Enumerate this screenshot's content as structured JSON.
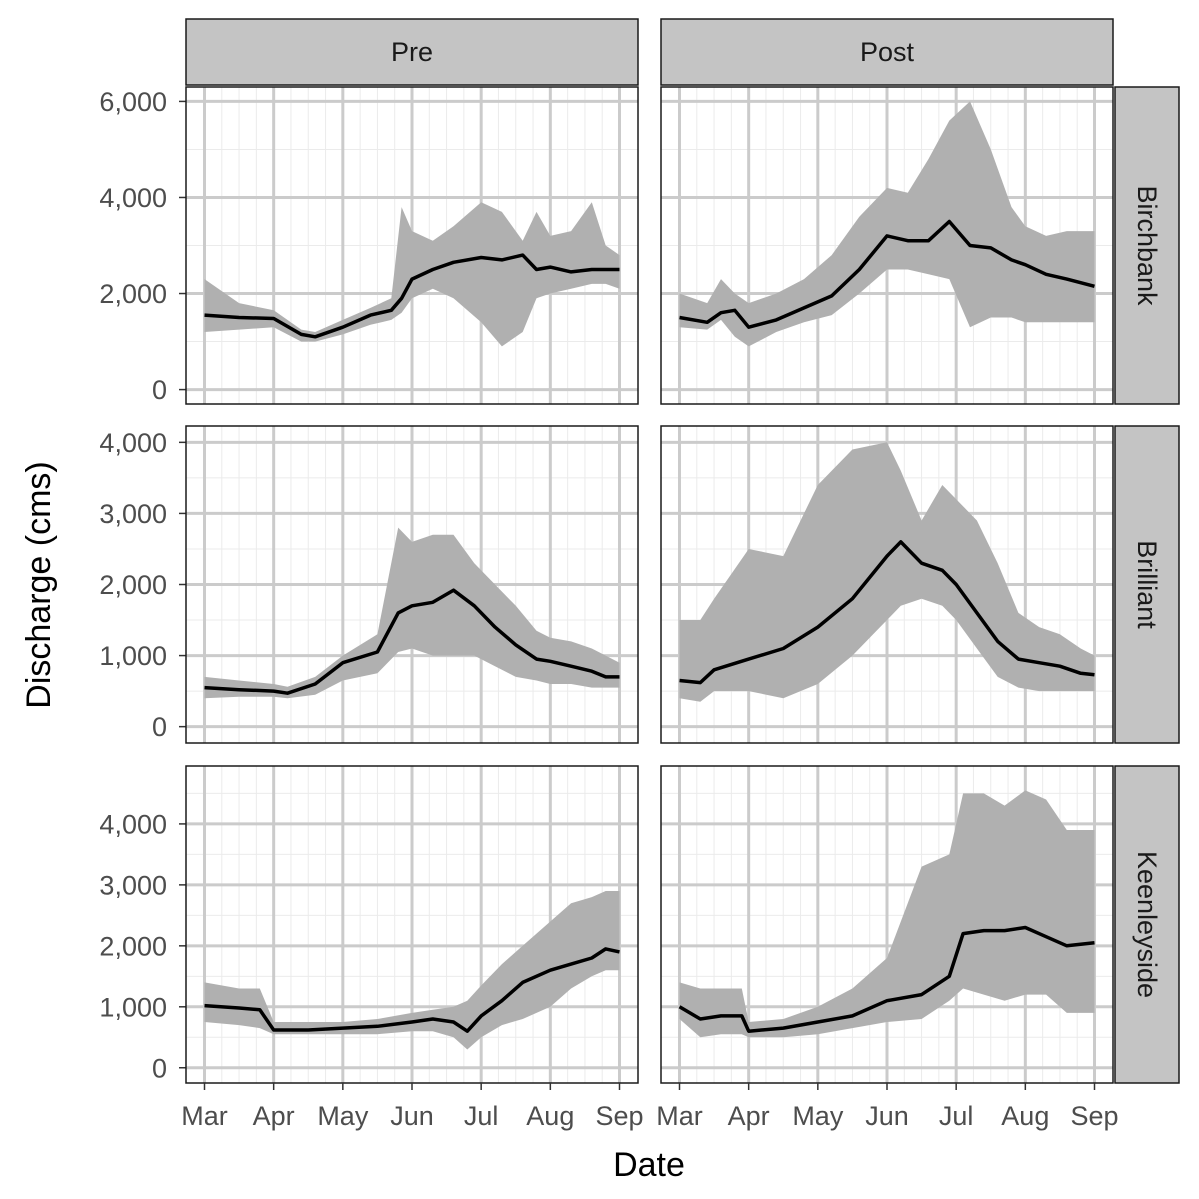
{
  "chart_data": {
    "type": "area",
    "description": "faceted ribbon + mean line",
    "xlabel": "Date",
    "ylabel": "Discharge (cms)",
    "x_tick_labels": [
      "Mar",
      "Apr",
      "May",
      "Jun",
      "Jul",
      "Aug",
      "Sep"
    ],
    "columns": [
      "Pre",
      "Post"
    ],
    "rows": [
      {
        "name": "Birchbank",
        "ylim": [
          -300,
          6300
        ],
        "y_ticks": [
          0,
          2000,
          4000,
          6000
        ],
        "y_tick_labels": [
          "0",
          "2,000",
          "4,000",
          "6,000"
        ],
        "panels": {
          "Pre": {
            "x": [
              0,
              0.5,
              1,
              1.4,
              1.6,
              2,
              2.4,
              2.7,
              2.85,
              3,
              3.3,
              3.6,
              4,
              4.3,
              4.6,
              4.8,
              5,
              5.3,
              5.6,
              5.8,
              6
            ],
            "mean": [
              1550,
              1500,
              1480,
              1150,
              1100,
              1300,
              1550,
              1650,
              1900,
              2300,
              2500,
              2650,
              2750,
              2700,
              2800,
              2500,
              2550,
              2450,
              2500,
              2500,
              2500
            ],
            "lower": [
              1200,
              1250,
              1300,
              1000,
              1000,
              1150,
              1350,
              1450,
              1600,
              1900,
              2100,
              1900,
              1400,
              900,
              1200,
              1900,
              2000,
              2100,
              2200,
              2200,
              2100
            ],
            "upper": [
              2300,
              1800,
              1650,
              1250,
              1200,
              1450,
              1700,
              1900,
              3800,
              3300,
              3100,
              3400,
              3900,
              3700,
              3100,
              3700,
              3200,
              3300,
              3900,
              3000,
              2800
            ]
          },
          "Post": {
            "x": [
              0,
              0.4,
              0.6,
              0.8,
              1,
              1.4,
              1.8,
              2.2,
              2.6,
              3,
              3.3,
              3.6,
              3.9,
              4.2,
              4.5,
              4.8,
              5,
              5.3,
              5.6,
              6
            ],
            "mean": [
              1500,
              1400,
              1600,
              1650,
              1300,
              1450,
              1700,
              1950,
              2500,
              3200,
              3100,
              3100,
              3500,
              3000,
              2950,
              2700,
              2600,
              2400,
              2300,
              2150
            ],
            "lower": [
              1300,
              1250,
              1450,
              1100,
              900,
              1200,
              1400,
              1550,
              2000,
              2500,
              2500,
              2400,
              2300,
              1300,
              1500,
              1500,
              1400,
              1400,
              1400,
              1400
            ],
            "upper": [
              2000,
              1800,
              2300,
              2000,
              1800,
              2000,
              2300,
              2800,
              3600,
              4200,
              4100,
              4800,
              5600,
              6000,
              5000,
              3800,
              3400,
              3200,
              3300,
              3300
            ]
          }
        }
      },
      {
        "name": "Brilliant",
        "ylim": [
          -230,
          4230
        ],
        "y_ticks": [
          0,
          1000,
          2000,
          3000,
          4000
        ],
        "y_tick_labels": [
          "0",
          "1,000",
          "2,000",
          "3,000",
          "4,000"
        ],
        "panels": {
          "Pre": {
            "x": [
              0,
              0.5,
              1,
              1.2,
              1.6,
              2,
              2.5,
              2.8,
              3,
              3.3,
              3.6,
              3.9,
              4.2,
              4.5,
              4.8,
              5,
              5.3,
              5.6,
              5.8,
              6
            ],
            "mean": [
              550,
              520,
              500,
              470,
              600,
              900,
              1050,
              1600,
              1700,
              1750,
              1920,
              1700,
              1400,
              1150,
              950,
              920,
              850,
              780,
              700,
              700
            ],
            "lower": [
              400,
              420,
              420,
              400,
              450,
              650,
              750,
              1050,
              1100,
              1000,
              1000,
              1000,
              850,
              700,
              650,
              600,
              600,
              550,
              550,
              550
            ],
            "upper": [
              700,
              650,
              600,
              560,
              700,
              1000,
              1300,
              2800,
              2600,
              2700,
              2700,
              2300,
              2000,
              1700,
              1350,
              1250,
              1200,
              1100,
              1000,
              900
            ]
          },
          "Post": {
            "x": [
              0,
              0.3,
              0.5,
              1,
              1.5,
              2,
              2.5,
              3,
              3.2,
              3.5,
              3.8,
              4,
              4.3,
              4.6,
              4.9,
              5.2,
              5.5,
              5.8,
              6
            ],
            "mean": [
              650,
              620,
              800,
              950,
              1100,
              1400,
              1800,
              2400,
              2600,
              2300,
              2200,
              2000,
              1600,
              1200,
              950,
              900,
              850,
              750,
              730
            ],
            "lower": [
              400,
              350,
              500,
              500,
              400,
              600,
              1000,
              1500,
              1700,
              1800,
              1700,
              1500,
              1100,
              700,
              550,
              500,
              500,
              500,
              500
            ],
            "upper": [
              1500,
              1500,
              1800,
              2500,
              2400,
              3400,
              3900,
              4000,
              3600,
              2900,
              3400,
              3200,
              2900,
              2300,
              1600,
              1400,
              1300,
              1100,
              1000
            ]
          }
        }
      },
      {
        "name": "Keenleyside",
        "ylim": [
          -250,
          4950
        ],
        "y_ticks": [
          0,
          1000,
          2000,
          3000,
          4000
        ],
        "y_tick_labels": [
          "0",
          "1,000",
          "2,000",
          "3,000",
          "4,000"
        ],
        "panels": {
          "Pre": {
            "x": [
              0,
              0.5,
              0.8,
              1,
              1.5,
              2,
              2.5,
              3,
              3.3,
              3.6,
              3.8,
              4,
              4.3,
              4.6,
              5,
              5.3,
              5.6,
              5.8,
              6
            ],
            "mean": [
              1020,
              980,
              950,
              620,
              620,
              650,
              680,
              750,
              800,
              750,
              600,
              850,
              1100,
              1400,
              1600,
              1700,
              1800,
              1950,
              1900
            ],
            "lower": [
              750,
              700,
              650,
              550,
              550,
              550,
              550,
              600,
              600,
              500,
              300,
              500,
              700,
              800,
              1000,
              1300,
              1500,
              1600,
              1600
            ],
            "upper": [
              1400,
              1300,
              1300,
              750,
              750,
              750,
              800,
              900,
              950,
              1000,
              1100,
              1350,
              1700,
              2000,
              2400,
              2700,
              2800,
              2900,
              2900
            ]
          },
          "Post": {
            "x": [
              0,
              0.3,
              0.6,
              0.9,
              1,
              1.5,
              2,
              2.5,
              3,
              3.5,
              3.9,
              4.1,
              4.4,
              4.7,
              5,
              5.3,
              5.6,
              6
            ],
            "mean": [
              1000,
              800,
              850,
              850,
              600,
              650,
              750,
              850,
              1100,
              1200,
              1500,
              2200,
              2250,
              2250,
              2300,
              2150,
              2000,
              2050
            ],
            "lower": [
              800,
              500,
              550,
              550,
              500,
              500,
              550,
              650,
              750,
              800,
              1100,
              1300,
              1200,
              1100,
              1200,
              1200,
              900,
              900
            ],
            "upper": [
              1400,
              1300,
              1300,
              1300,
              750,
              800,
              1000,
              1300,
              1800,
              3300,
              3500,
              4500,
              4500,
              4300,
              4550,
              4400,
              3900,
              3900
            ]
          }
        }
      }
    ]
  }
}
